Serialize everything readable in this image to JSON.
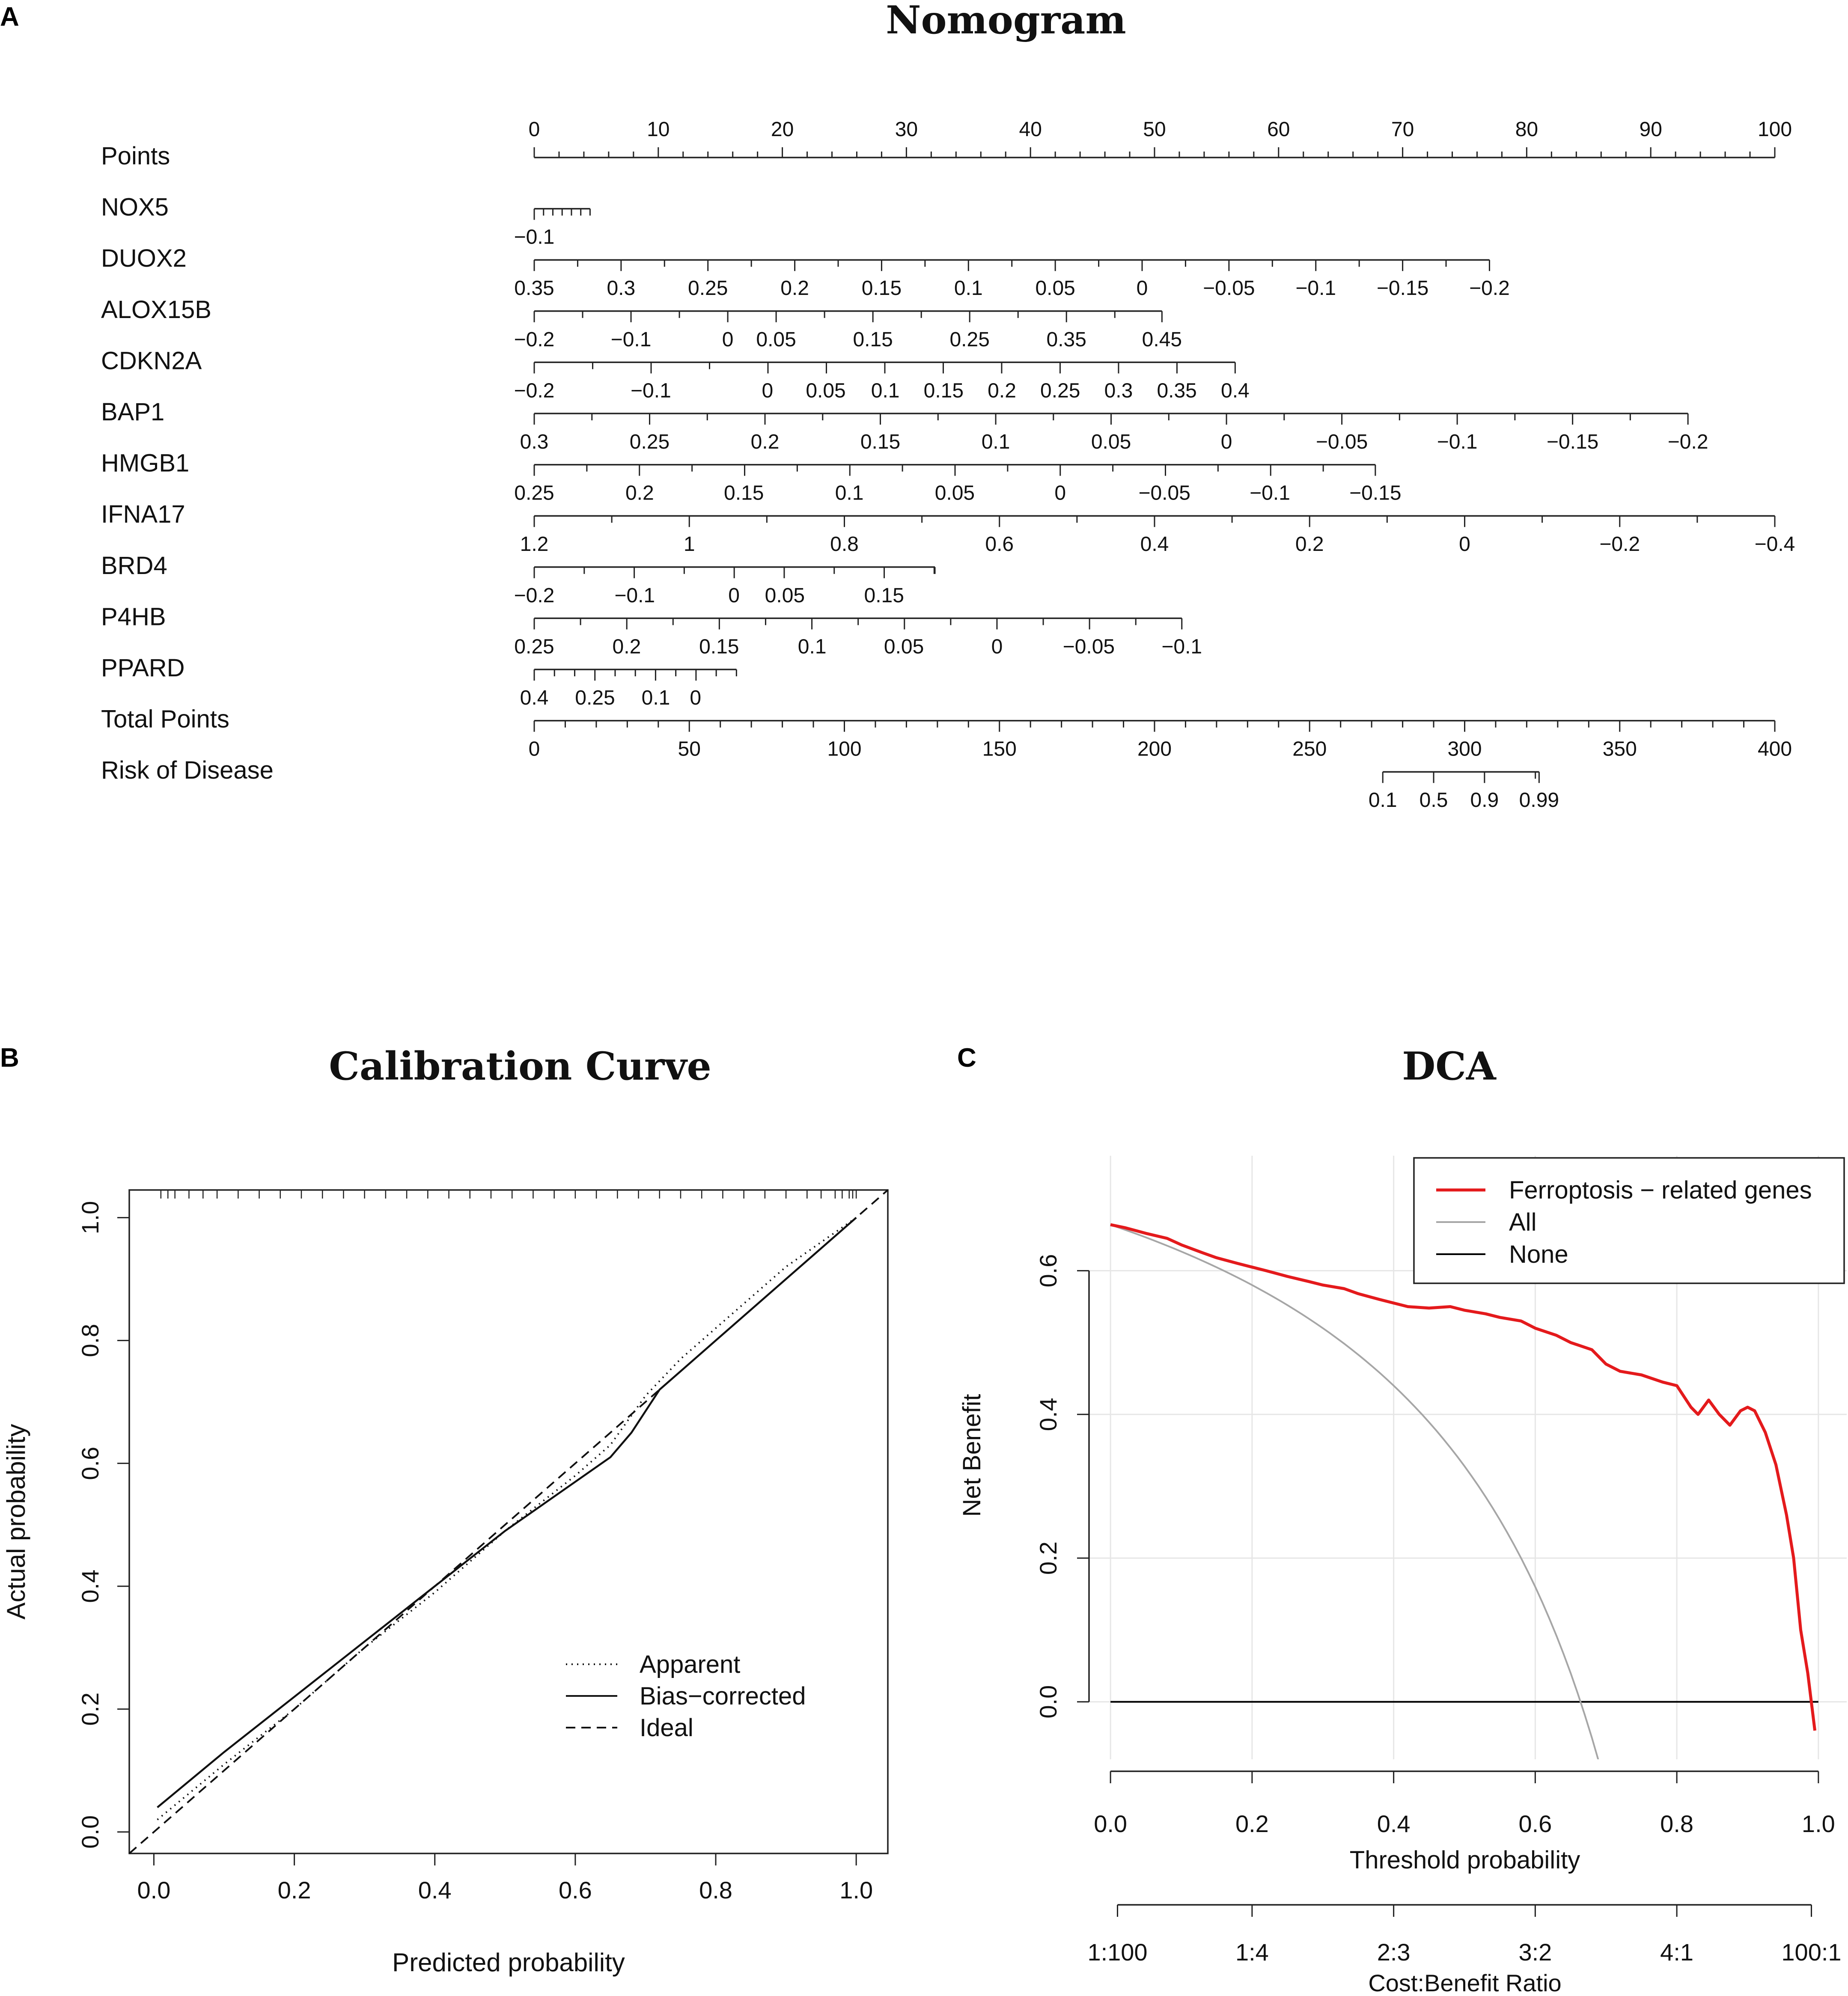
{
  "panels": {
    "a": {
      "label": "A",
      "title": "Nomogram"
    },
    "b": {
      "label": "B",
      "title": "Calibration Curve"
    },
    "c": {
      "label": "C",
      "title": "DCA"
    }
  },
  "chart_data": [
    {
      "type": "nomogram",
      "title": "Nomogram",
      "rows": [
        {
          "name": "Points",
          "scale_points": [
            0,
            100
          ],
          "labels": [
            {
              "text": "0",
              "pts": 0
            },
            {
              "text": "10",
              "pts": 10
            },
            {
              "text": "20",
              "pts": 20
            },
            {
              "text": "30",
              "pts": 30
            },
            {
              "text": "40",
              "pts": 40
            },
            {
              "text": "50",
              "pts": 50
            },
            {
              "text": "60",
              "pts": 60
            },
            {
              "text": "70",
              "pts": 70
            },
            {
              "text": "80",
              "pts": 80
            },
            {
              "text": "90",
              "pts": 90
            },
            {
              "text": "100",
              "pts": 100
            }
          ],
          "minor_step": 2,
          "labels_above": true
        },
        {
          "name": "NOX5",
          "scale_points": [
            0,
            4.5
          ],
          "labels": [
            {
              "text": "−0.1",
              "pts": 0
            }
          ],
          "ticks_pts": [
            0,
            0.75,
            1.5,
            2.25,
            3,
            3.75,
            4.5
          ]
        },
        {
          "name": "DUOX2",
          "scale_points": [
            0,
            77
          ],
          "labels": [
            {
              "text": "0.35",
              "pts": 0
            },
            {
              "text": "0.3",
              "pts": 7
            },
            {
              "text": "0.25",
              "pts": 14
            },
            {
              "text": "0.2",
              "pts": 21
            },
            {
              "text": "0.15",
              "pts": 28
            },
            {
              "text": "0.1",
              "pts": 35
            },
            {
              "text": "0.05",
              "pts": 42
            },
            {
              "text": "0",
              "pts": 49
            },
            {
              "text": "−0.05",
              "pts": 56
            },
            {
              "text": "−0.1",
              "pts": 63
            },
            {
              "text": "−0.15",
              "pts": 70
            },
            {
              "text": "−0.2",
              "pts": 77
            }
          ],
          "ticks_step": 3.5
        },
        {
          "name": "ALOX15B",
          "scale_points": [
            0,
            50.6
          ],
          "labels": [
            {
              "text": "−0.2",
              "pts": 0
            },
            {
              "text": "−0.1",
              "pts": 7.8
            },
            {
              "text": "0",
              "pts": 15.6
            },
            {
              "text": "0.05",
              "pts": 19.5
            },
            {
              "text": "0.15",
              "pts": 27.3
            },
            {
              "text": "0.25",
              "pts": 35.1
            },
            {
              "text": "0.35",
              "pts": 42.9
            },
            {
              "text": "0.45",
              "pts": 50.6
            }
          ],
          "ticks_step": 3.9
        },
        {
          "name": "CDKN2A",
          "scale_points": [
            0,
            56.5
          ],
          "labels": [
            {
              "text": "−0.2",
              "pts": 0
            },
            {
              "text": "−0.1",
              "pts": 9.4
            },
            {
              "text": "0",
              "pts": 18.8
            },
            {
              "text": "0.05",
              "pts": 23.5
            },
            {
              "text": "0.1",
              "pts": 28.3
            },
            {
              "text": "0.15",
              "pts": 33.0
            },
            {
              "text": "0.2",
              "pts": 37.7
            },
            {
              "text": "0.25",
              "pts": 42.4
            },
            {
              "text": "0.3",
              "pts": 47.1
            },
            {
              "text": "0.35",
              "pts": 51.8
            },
            {
              "text": "0.4",
              "pts": 56.5
            }
          ],
          "ticks_step": 4.71
        },
        {
          "name": "BAP1",
          "scale_points": [
            0,
            93
          ],
          "labels": [
            {
              "text": "0.3",
              "pts": 0
            },
            {
              "text": "0.25",
              "pts": 9.3
            },
            {
              "text": "0.2",
              "pts": 18.6
            },
            {
              "text": "0.15",
              "pts": 27.9
            },
            {
              "text": "0.1",
              "pts": 37.2
            },
            {
              "text": "0.05",
              "pts": 46.5
            },
            {
              "text": "0",
              "pts": 55.8
            },
            {
              "text": "−0.05",
              "pts": 65.1
            },
            {
              "text": "−0.1",
              "pts": 74.4
            },
            {
              "text": "−0.15",
              "pts": 83.7
            },
            {
              "text": "−0.2",
              "pts": 93
            }
          ],
          "ticks_step": 4.65
        },
        {
          "name": "HMGB1",
          "scale_points": [
            0,
            67.8
          ],
          "labels": [
            {
              "text": "0.25",
              "pts": 0
            },
            {
              "text": "0.2",
              "pts": 8.5
            },
            {
              "text": "0.15",
              "pts": 16.9
            },
            {
              "text": "0.1",
              "pts": 25.4
            },
            {
              "text": "0.05",
              "pts": 33.9
            },
            {
              "text": "0",
              "pts": 42.4
            },
            {
              "text": "−0.05",
              "pts": 50.8
            },
            {
              "text": "−0.1",
              "pts": 59.3
            },
            {
              "text": "−0.15",
              "pts": 67.8
            }
          ],
          "ticks_step": 4.24
        },
        {
          "name": "IFNA17",
          "scale_points": [
            0,
            100
          ],
          "labels": [
            {
              "text": "1.2",
              "pts": 0
            },
            {
              "text": "1",
              "pts": 12.5
            },
            {
              "text": "0.8",
              "pts": 25
            },
            {
              "text": "0.6",
              "pts": 37.5
            },
            {
              "text": "0.4",
              "pts": 50
            },
            {
              "text": "0.2",
              "pts": 62.5
            },
            {
              "text": "0",
              "pts": 75
            },
            {
              "text": "−0.2",
              "pts": 87.5
            },
            {
              "text": "−0.4",
              "pts": 100
            }
          ],
          "ticks_step": 6.25
        },
        {
          "name": "BRD4",
          "scale_points": [
            0,
            32.3
          ],
          "labels": [
            {
              "text": "−0.2",
              "pts": 0
            },
            {
              "text": "−0.1",
              "pts": 8.1
            },
            {
              "text": "0",
              "pts": 16.1
            },
            {
              "text": "0.05",
              "pts": 20.2
            },
            {
              "text": "0.15",
              "pts": 28.2
            }
          ],
          "ticks_step": 4.03
        },
        {
          "name": "P4HB",
          "scale_points": [
            0,
            52.2
          ],
          "labels": [
            {
              "text": "0.25",
              "pts": 0
            },
            {
              "text": "0.2",
              "pts": 7.45
            },
            {
              "text": "0.15",
              "pts": 14.9
            },
            {
              "text": "0.1",
              "pts": 22.4
            },
            {
              "text": "0.05",
              "pts": 29.8
            },
            {
              "text": "0",
              "pts": 37.3
            },
            {
              "text": "−0.05",
              "pts": 44.7
            },
            {
              "text": "−0.1",
              "pts": 52.2
            }
          ],
          "ticks_step": 3.73
        },
        {
          "name": "PPARD",
          "scale_points": [
            0,
            16.3
          ],
          "labels": [
            {
              "text": "0.4",
              "pts": 0
            },
            {
              "text": "0.25",
              "pts": 4.9
            },
            {
              "text": "0.1",
              "pts": 9.8
            },
            {
              "text": "0",
              "pts": 13.0
            }
          ],
          "ticks_step": 1.63
        },
        {
          "name": "Total Points",
          "scale_points": [
            0,
            100
          ],
          "labels": [
            {
              "text": "0",
              "pts": 0
            },
            {
              "text": "50",
              "pts": 12.5
            },
            {
              "text": "100",
              "pts": 25
            },
            {
              "text": "150",
              "pts": 37.5
            },
            {
              "text": "200",
              "pts": 50
            },
            {
              "text": "250",
              "pts": 62.5
            },
            {
              "text": "300",
              "pts": 75
            },
            {
              "text": "350",
              "pts": 87.5
            },
            {
              "text": "400",
              "pts": 100
            }
          ],
          "ticks_step": 2.5
        },
        {
          "name": "Risk of Disease",
          "scale_points": [
            68.4,
            81.0
          ],
          "labels": [
            {
              "text": "0.1",
              "pts": 68.4
            },
            {
              "text": "0.5",
              "pts": 72.5
            },
            {
              "text": "0.9",
              "pts": 76.6
            },
            {
              "text": "0.99",
              "pts": 81.0
            }
          ],
          "ticks_step": 4.1
        }
      ]
    },
    {
      "type": "line",
      "title": "Calibration Curve",
      "xlabel": "Predicted probability",
      "ylabel": "Actual probability",
      "xlim": [
        -0.035,
        1.045
      ],
      "ylim": [
        -0.035,
        1.045
      ],
      "xticks": [
        "0.0",
        "0.2",
        "0.4",
        "0.6",
        "0.8",
        "1.0"
      ],
      "yticks": [
        "0.0",
        "0.2",
        "0.4",
        "0.6",
        "0.8",
        "1.0"
      ],
      "legend": {
        "position": "bottom-right",
        "entries": [
          "Apparent",
          "Bias−corrected",
          "Ideal"
        ]
      },
      "series": [
        {
          "name": "Apparent",
          "style": "dotted",
          "x": [
            0.005,
            0.1,
            0.2,
            0.3,
            0.4,
            0.5,
            0.6,
            0.65,
            0.7,
            0.75,
            0.8,
            0.9,
            1.0
          ],
          "y": [
            0.02,
            0.11,
            0.2,
            0.3,
            0.39,
            0.49,
            0.58,
            0.63,
            0.71,
            0.77,
            0.82,
            0.92,
            1.0
          ]
        },
        {
          "name": "Bias−corrected",
          "style": "solid",
          "x": [
            0.005,
            0.1,
            0.2,
            0.3,
            0.4,
            0.5,
            0.6,
            0.65,
            0.68,
            0.72,
            0.75,
            0.8,
            0.9,
            1.0
          ],
          "y": [
            0.04,
            0.13,
            0.22,
            0.31,
            0.4,
            0.49,
            0.57,
            0.61,
            0.65,
            0.72,
            0.75,
            0.8,
            0.9,
            1.0
          ]
        },
        {
          "name": "Ideal",
          "style": "dashed",
          "x": [
            -0.035,
            1.045
          ],
          "y": [
            -0.035,
            1.045
          ]
        }
      ],
      "rug_x": [
        0.01,
        0.02,
        0.03,
        0.05,
        0.07,
        0.09,
        0.12,
        0.15,
        0.18,
        0.21,
        0.24,
        0.27,
        0.3,
        0.33,
        0.36,
        0.39,
        0.42,
        0.45,
        0.48,
        0.51,
        0.54,
        0.57,
        0.6,
        0.63,
        0.66,
        0.69,
        0.72,
        0.75,
        0.78,
        0.81,
        0.84,
        0.87,
        0.9,
        0.93,
        0.95,
        0.97,
        0.98,
        0.99,
        0.995,
        1.0
      ]
    },
    {
      "type": "line",
      "title": "DCA",
      "xlabel": "Threshold probability",
      "ylabel": "Net Benefit",
      "x2label": "Cost:Benefit Ratio",
      "xlim": [
        -0.04,
        1.04
      ],
      "ylim": [
        -0.08,
        0.76
      ],
      "xticks": [
        "0.0",
        "0.2",
        "0.4",
        "0.6",
        "0.8",
        "1.0"
      ],
      "yticks": [
        "0.0",
        "0.2",
        "0.4",
        "0.6"
      ],
      "x2ticks": [
        {
          "label": "1:100",
          "x": 0.0099
        },
        {
          "label": "1:4",
          "x": 0.2
        },
        {
          "label": "2:3",
          "x": 0.4
        },
        {
          "label": "3:2",
          "x": 0.6
        },
        {
          "label": "4:1",
          "x": 0.8
        },
        {
          "label": "100:1",
          "x": 0.9901
        }
      ],
      "legend": {
        "position": "top-right",
        "entries": [
          "Ferroptosis − related genes",
          "All",
          "None"
        ]
      },
      "series": [
        {
          "name": "Ferroptosis − related genes",
          "color": "#e41a1c",
          "x": [
            0.0,
            0.02,
            0.05,
            0.08,
            0.1,
            0.13,
            0.15,
            0.18,
            0.2,
            0.22,
            0.25,
            0.28,
            0.3,
            0.33,
            0.35,
            0.38,
            0.4,
            0.42,
            0.45,
            0.48,
            0.5,
            0.53,
            0.55,
            0.58,
            0.6,
            0.63,
            0.65,
            0.68,
            0.7,
            0.72,
            0.75,
            0.78,
            0.8,
            0.82,
            0.83,
            0.845,
            0.86,
            0.875,
            0.89,
            0.9,
            0.91,
            0.925,
            0.94,
            0.955,
            0.965,
            0.975,
            0.985,
            0.99,
            0.995
          ],
          "y": [
            0.664,
            0.66,
            0.652,
            0.645,
            0.636,
            0.625,
            0.618,
            0.61,
            0.605,
            0.6,
            0.592,
            0.585,
            0.58,
            0.575,
            0.568,
            0.56,
            0.555,
            0.55,
            0.548,
            0.55,
            0.545,
            0.54,
            0.535,
            0.53,
            0.52,
            0.51,
            0.5,
            0.49,
            0.47,
            0.46,
            0.455,
            0.445,
            0.44,
            0.41,
            0.4,
            0.42,
            0.4,
            0.385,
            0.405,
            0.41,
            0.405,
            0.375,
            0.33,
            0.26,
            0.2,
            0.1,
            0.04,
            0.0,
            -0.04
          ]
        },
        {
          "name": "All",
          "color": "#a6a6a6",
          "formula": "0.664 - (1 - 0.664) * t / (1 - t)"
        },
        {
          "name": "None",
          "color": "#000000",
          "x": [
            0.0,
            1.0
          ],
          "y": [
            0.0,
            0.0
          ]
        }
      ]
    }
  ]
}
